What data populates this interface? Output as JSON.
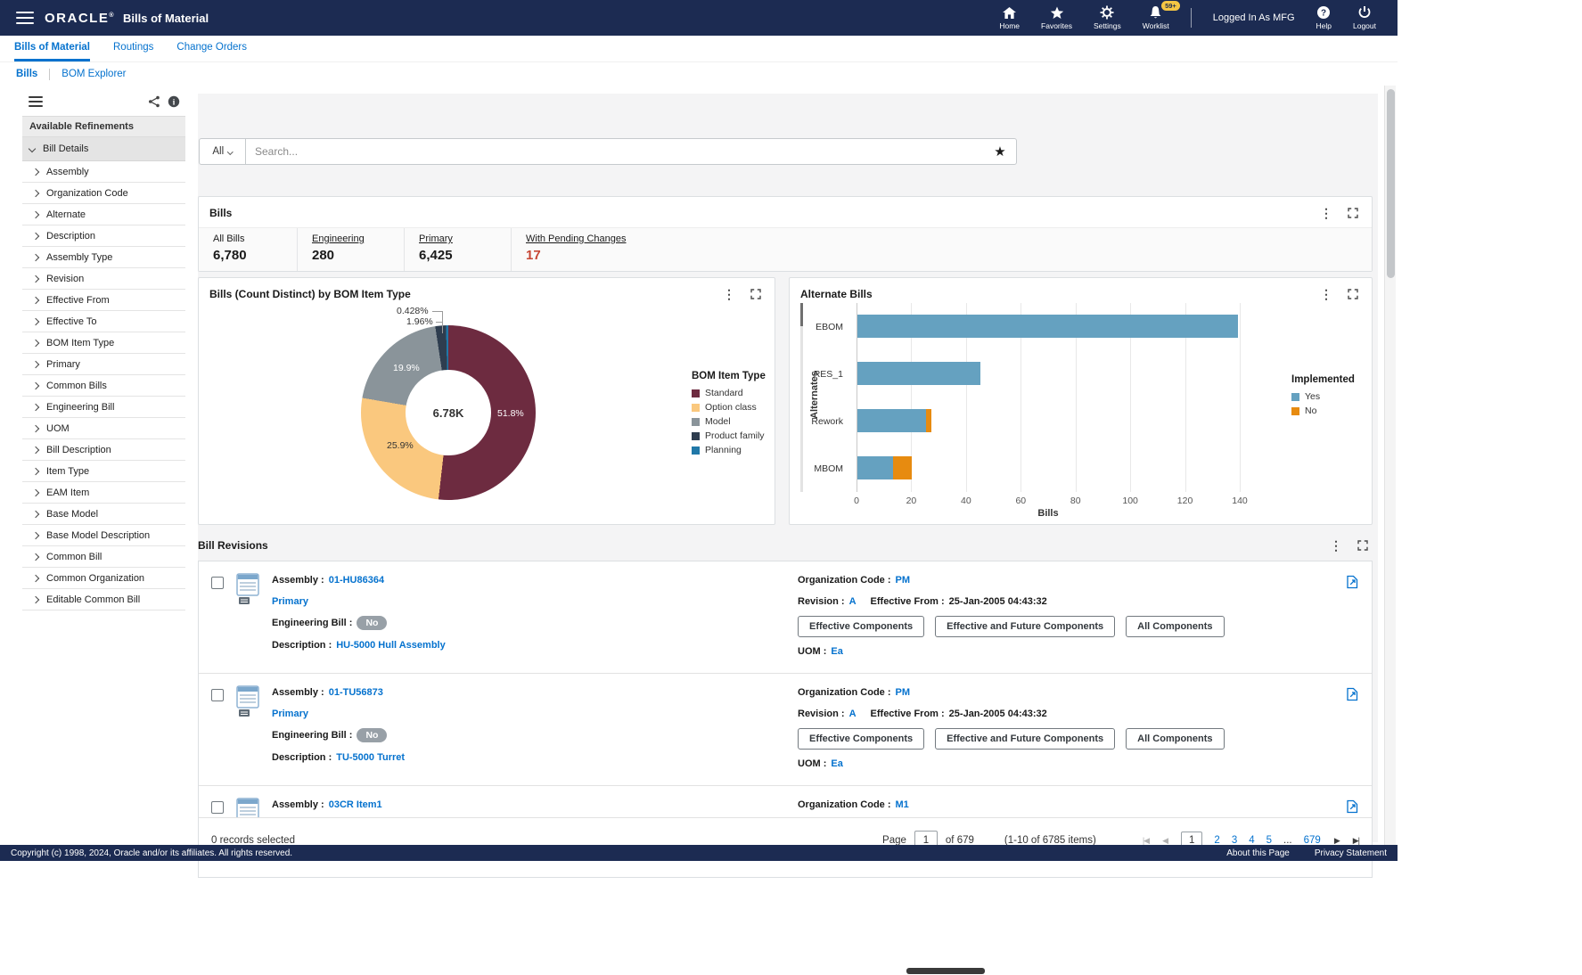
{
  "icons": {
    "kebab": "⋮",
    "star": "★",
    "pager_first": "|◀",
    "pager_prev": "◀",
    "pager_next": "▶",
    "pager_last": "▶|"
  },
  "topbar": {
    "brand": "ORACLE",
    "brand_mark": "®",
    "app_title": "Bills of Material",
    "nav_home": "Home",
    "nav_favorites": "Favorites",
    "nav_settings": "Settings",
    "nav_worklist": "Worklist",
    "worklist_badge": "59+",
    "logged_in_text": "Logged In As MFG",
    "nav_help": "Help",
    "nav_logout": "Logout"
  },
  "tabs": {
    "bills_of_material": "Bills of Material",
    "routings": "Routings",
    "change_orders": "Change Orders"
  },
  "subnav": {
    "bills": "Bills",
    "bom_explorer": "BOM Explorer"
  },
  "refinements": {
    "title": "Available Refinements",
    "group": "Bill Details",
    "items": [
      "Assembly",
      "Organization Code",
      "Alternate",
      "Description",
      "Assembly Type",
      "Revision",
      "Effective From",
      "Effective To",
      "BOM Item Type",
      "Primary",
      "Common Bills",
      "Engineering Bill",
      "UOM",
      "Bill Description",
      "Item Type",
      "EAM Item",
      "Base Model",
      "Base Model Description",
      "Common Bill",
      "Common Organization",
      "Editable Common Bill"
    ]
  },
  "search": {
    "scope": "All",
    "placeholder": "Search..."
  },
  "bills_panel": {
    "title": "Bills",
    "metrics": [
      {
        "label": "All Bills",
        "value": "6,780"
      },
      {
        "label": "Engineering",
        "value": "280"
      },
      {
        "label": "Primary",
        "value": "6,425"
      },
      {
        "label": "With Pending Changes",
        "value": "17"
      }
    ]
  },
  "chart_data": [
    {
      "type": "pie",
      "title": "Bills (Count Distinct) by BOM Item Type",
      "center_total": "6.78K",
      "legend_title": "BOM Item Type",
      "legend_position": "right",
      "slices": [
        {
          "label": "Standard",
          "value_pct": 51.8,
          "pct_label": "51.8%",
          "color": "#6d2b40"
        },
        {
          "label": "Option class",
          "value_pct": 25.9,
          "pct_label": "25.9%",
          "color": "#fac87e"
        },
        {
          "label": "Model",
          "value_pct": 19.9,
          "pct_label": "19.9%",
          "color": "#8a949a"
        },
        {
          "label": "Product family",
          "value_pct": 1.96,
          "pct_label": "1.96%",
          "color": "#2e3d4f"
        },
        {
          "label": "Planning",
          "value_pct": 0.428,
          "pct_label": "0.428%",
          "color": "#2178a8"
        }
      ]
    },
    {
      "type": "bar",
      "title": "Alternate Bills",
      "orientation": "horizontal",
      "categories": [
        "EBOM",
        "RES_1",
        "Rework",
        "MBOM"
      ],
      "series": [
        {
          "name": "Yes",
          "color": "#65a1c0",
          "values": [
            139,
            45,
            25,
            13
          ]
        },
        {
          "name": "No",
          "color": "#e78b10",
          "values": [
            0,
            0,
            2,
            7
          ]
        }
      ],
      "xlabel": "Bills",
      "ylabel": "Alternates",
      "legend_title": "Implemented",
      "legend_position": "right",
      "xlim": [
        0,
        140
      ],
      "xticks": [
        0,
        20,
        40,
        60,
        80,
        100,
        120,
        140
      ],
      "grid": true
    }
  ],
  "revisions": {
    "title": "Bill Revisions",
    "labels": {
      "assembly": "Assembly :",
      "engineering_bill": "Engineering Bill :",
      "description": "Description :",
      "organization_code": "Organization Code :",
      "revision": "Revision :",
      "effective_from": "Effective From :",
      "uom": "UOM :"
    },
    "buttons": [
      "Effective Components",
      "Effective and Future Components",
      "All Components"
    ],
    "rows": [
      {
        "assembly": "01-HU86364",
        "primary_label": "Primary",
        "engineering_bill": "No",
        "description": "HU-5000 Hull Assembly",
        "organization_code": "PM",
        "revision": "A",
        "effective_from": "25-Jan-2005 04:43:32",
        "uom": "Ea",
        "partial": false
      },
      {
        "assembly": "01-TU56873",
        "primary_label": "Primary",
        "engineering_bill": "No",
        "description": "TU-5000 Turret",
        "organization_code": "PM",
        "revision": "A",
        "effective_from": "25-Jan-2005 04:43:32",
        "uom": "Ea",
        "partial": false
      },
      {
        "assembly": "03CR Item1",
        "organization_code": "M1",
        "partial": true
      }
    ],
    "footer": {
      "selected_text": "0 records selected",
      "page_label": "Page",
      "page_value": "1",
      "page_of": "of 679",
      "items_range": "(1-10 of 6785 items)",
      "pages": [
        "1",
        "2",
        "3",
        "4",
        "5",
        "...",
        "679"
      ],
      "current": "1"
    }
  },
  "bottombar": {
    "copyright": "Copyright (c) 1998, 2024, Oracle and/or its affiliates. All rights reserved.",
    "about": "About this Page",
    "privacy": "Privacy Statement"
  }
}
